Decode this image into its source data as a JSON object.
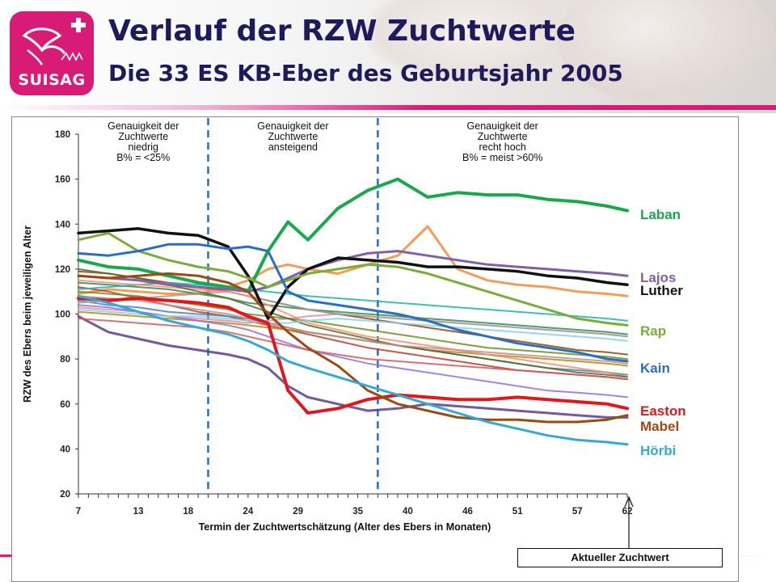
{
  "header": {
    "logo_text": "SUISAG",
    "title_line1": "Verlauf der RZW Zuchtwerte",
    "title_line2": "Die 33 ES KB-Eber des Geburtsjahr 2005"
  },
  "colors": {
    "brand_pink": "#d81b77",
    "title_navy": "#1f1a5c"
  },
  "callout": "Aktueller Zuchtwert",
  "chart_data": {
    "type": "line",
    "xlabel": "Termin der Zuchtwertschätzung (Alter des Ebers in Monaten)",
    "ylabel": "RZW des Ebers beim jeweiligen Alter",
    "xlim": [
      7,
      62
    ],
    "ylim": [
      20,
      180
    ],
    "x_ticks": [
      7,
      13,
      18,
      24,
      29,
      35,
      40,
      46,
      51,
      57,
      62
    ],
    "y_ticks": [
      20,
      40,
      60,
      80,
      100,
      120,
      140,
      160,
      180
    ],
    "grid": false,
    "phase_dividers": [
      20,
      37
    ],
    "phases": [
      [
        "Genauigkeit der",
        "Zuchtwerte",
        "niedrig",
        "B% = <25%"
      ],
      [
        "Genauigkeit der",
        "Zuchtwerte",
        "ansteigend"
      ],
      [
        "Genauigkeit der",
        "Zuchtwerte",
        "recht hoch",
        "B% = meist >60%"
      ]
    ],
    "x": [
      7,
      10,
      13,
      16,
      19,
      22,
      24,
      26,
      28,
      30,
      33,
      36,
      39,
      42,
      45,
      48,
      51,
      54,
      57,
      60,
      62
    ],
    "series": [
      {
        "name": "Laban",
        "color": "#1aa84a",
        "width": 4,
        "values": [
          124,
          121,
          120,
          117,
          114,
          112,
          110,
          128,
          141,
          133,
          147,
          155,
          160,
          152,
          154,
          153,
          153,
          151,
          150,
          148,
          146
        ]
      },
      {
        "name": "Lajos",
        "color": "#8060a8",
        "width": 3,
        "values": [
          117,
          116,
          115,
          113,
          112,
          111,
          110,
          112,
          116,
          120,
          124,
          127,
          128,
          126,
          124,
          122,
          121,
          120,
          119,
          118,
          117
        ]
      },
      {
        "name": "Luther",
        "color": "#111111",
        "width": 3.5,
        "values": [
          136,
          137,
          138,
          136,
          135,
          130,
          117,
          98,
          112,
          120,
          125,
          124,
          123,
          121,
          121,
          120,
          119,
          117,
          116,
          114,
          113
        ]
      },
      {
        "name": "Rap",
        "color": "#7cab3c",
        "width": 3,
        "values": [
          133,
          136,
          128,
          124,
          121,
          119,
          116,
          112,
          115,
          118,
          120,
          122,
          121,
          118,
          114,
          110,
          106,
          102,
          98,
          96,
          95
        ]
      },
      {
        "name": "Kain",
        "color": "#2a6fbf",
        "width": 3,
        "values": [
          127,
          126,
          128,
          131,
          131,
          129,
          130,
          128,
          110,
          106,
          104,
          102,
          100,
          97,
          93,
          90,
          87,
          85,
          83,
          80,
          79
        ]
      },
      {
        "name": "Easton",
        "color": "#e0181d",
        "width": 4,
        "values": [
          107,
          106,
          107,
          106,
          105,
          103,
          99,
          96,
          66,
          56,
          58,
          62,
          64,
          63,
          62,
          62,
          63,
          62,
          61,
          60,
          58
        ]
      },
      {
        "name": "Mabel",
        "color": "#9a4b14",
        "width": 3,
        "values": [
          117,
          116,
          117,
          118,
          117,
          114,
          110,
          100,
          92,
          85,
          77,
          66,
          60,
          57,
          54,
          53,
          53,
          52,
          52,
          53,
          55
        ]
      },
      {
        "name": "Hörbi",
        "color": "#35a9d6",
        "width": 3,
        "values": [
          108,
          105,
          101,
          97,
          94,
          91,
          88,
          84,
          79,
          76,
          72,
          68,
          64,
          60,
          56,
          52,
          49,
          46,
          44,
          43,
          42
        ]
      },
      {
        "name": "",
        "color": "#f08c3c",
        "width": 3,
        "values": [
          109,
          111,
          110,
          109,
          109,
          112,
          115,
          120,
          122,
          120,
          118,
          122,
          126,
          139,
          120,
          115,
          113,
          112,
          110,
          109,
          108
        ]
      },
      {
        "name": "",
        "color": "#5a3d8c",
        "width": 3,
        "values": [
          99,
          92,
          89,
          86,
          84,
          82,
          80,
          76,
          68,
          63,
          60,
          57,
          58,
          60,
          59,
          58,
          57,
          56,
          55,
          54,
          54
        ]
      },
      {
        "name": "",
        "color": "#c0392b",
        "width": 2,
        "values": [
          112,
          110,
          107,
          104,
          101,
          99,
          97,
          95,
          93,
          91,
          88,
          85,
          83,
          81,
          79,
          77,
          75,
          74,
          73,
          72,
          71
        ]
      },
      {
        "name": "",
        "color": "#2e8b57",
        "width": 2,
        "values": [
          114,
          113,
          112,
          111,
          109,
          107,
          105,
          104,
          103,
          102,
          101,
          100,
          99,
          98,
          97,
          96,
          95,
          94,
          93,
          92,
          91
        ]
      },
      {
        "name": "",
        "color": "#d98cb3",
        "width": 2,
        "values": [
          103,
          102,
          101,
          99,
          98,
          97,
          96,
          97,
          98,
          99,
          100,
          99,
          98,
          97,
          96,
          95,
          94,
          93,
          92,
          91,
          90
        ]
      },
      {
        "name": "",
        "color": "#6b8e23",
        "width": 2,
        "values": [
          110,
          109,
          108,
          106,
          104,
          102,
          100,
          99,
          98,
          97,
          95,
          93,
          91,
          89,
          87,
          85,
          84,
          83,
          82,
          81,
          80
        ]
      },
      {
        "name": "",
        "color": "#4682b4",
        "width": 2,
        "values": [
          106,
          104,
          103,
          101,
          100,
          99,
          98,
          96,
          94,
          92,
          90,
          88,
          86,
          84,
          82,
          80,
          78,
          76,
          75,
          74,
          73
        ]
      },
      {
        "name": "",
        "color": "#b8860b",
        "width": 2,
        "values": [
          101,
          100,
          99,
          98,
          97,
          96,
          95,
          94,
          93,
          92,
          90,
          88,
          86,
          84,
          83,
          82,
          81,
          80,
          79,
          78,
          77
        ]
      },
      {
        "name": "",
        "color": "#8b4513",
        "width": 2,
        "values": [
          119,
          118,
          116,
          114,
          112,
          110,
          108,
          106,
          104,
          102,
          100,
          98,
          96,
          94,
          92,
          90,
          88,
          86,
          84,
          83,
          82
        ]
      },
      {
        "name": "",
        "color": "#9370db",
        "width": 2,
        "values": [
          104,
          103,
          101,
          99,
          97,
          95,
          93,
          90,
          87,
          84,
          81,
          78,
          76,
          74,
          72,
          70,
          68,
          66,
          65,
          64,
          63
        ]
      },
      {
        "name": "",
        "color": "#20b2aa",
        "width": 2,
        "values": [
          111,
          112,
          113,
          114,
          113,
          112,
          111,
          110,
          109,
          108,
          107,
          106,
          105,
          104,
          103,
          102,
          101,
          100,
          99,
          98,
          97
        ]
      },
      {
        "name": "",
        "color": "#cd5c5c",
        "width": 2,
        "values": [
          98,
          97,
          96,
          95,
          94,
          92,
          90,
          88,
          86,
          84,
          82,
          80,
          79,
          78,
          77,
          76,
          75,
          74,
          73,
          72,
          71
        ]
      },
      {
        "name": "",
        "color": "#a0a0a0",
        "width": 2,
        "values": [
          105,
          106,
          107,
          108,
          109,
          110,
          108,
          106,
          104,
          102,
          100,
          99,
          98,
          97,
          96,
          95,
          94,
          93,
          92,
          91,
          90
        ]
      },
      {
        "name": "",
        "color": "#ff8c69",
        "width": 2,
        "values": [
          115,
          114,
          113,
          112,
          111,
          110,
          108,
          104,
          100,
          96,
          93,
          90,
          88,
          86,
          84,
          82,
          80,
          78,
          76,
          74,
          72
        ]
      },
      {
        "name": "",
        "color": "#556b2f",
        "width": 2,
        "values": [
          120,
          118,
          116,
          113,
          110,
          107,
          104,
          101,
          98,
          95,
          92,
          89,
          86,
          84,
          82,
          80,
          78,
          76,
          74,
          73,
          72
        ]
      },
      {
        "name": "",
        "color": "#87ceeb",
        "width": 2,
        "values": [
          102,
          101,
          100,
          99,
          99,
          98,
          97,
          96,
          96,
          97,
          98,
          97,
          96,
          95,
          94,
          93,
          92,
          91,
          90,
          89,
          88
        ]
      },
      {
        "name": "",
        "color": "#bc8f8f",
        "width": 2,
        "values": [
          108,
          107,
          106,
          104,
          102,
          100,
          98,
          96,
          94,
          92,
          90,
          88,
          86,
          85,
          84,
          83,
          82,
          81,
          80,
          79,
          78
        ]
      }
    ]
  }
}
